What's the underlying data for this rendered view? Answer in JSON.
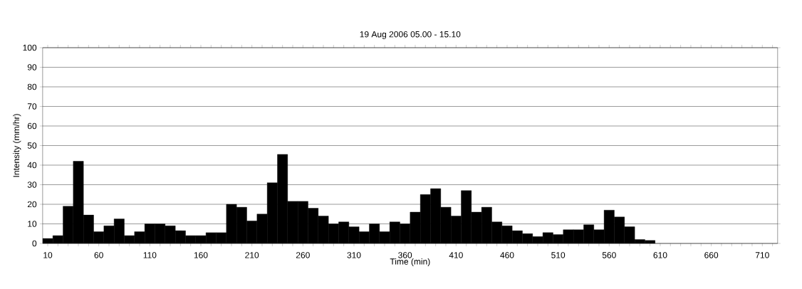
{
  "chart_data": {
    "type": "bar",
    "title": "19  Aug  2006   05.00 - 15.10",
    "xlabel": "Time (min)",
    "ylabel": "Intensity (mm/hr)",
    "categories": [
      "10",
      null,
      null,
      null,
      null,
      "60",
      null,
      null,
      null,
      null,
      "110",
      null,
      null,
      null,
      null,
      "160",
      null,
      null,
      null,
      null,
      "210",
      null,
      null,
      null,
      null,
      "260",
      null,
      null,
      null,
      null,
      "310",
      null,
      null,
      null,
      null,
      "360",
      null,
      null,
      null,
      null,
      "410",
      null,
      null,
      null,
      null,
      "460",
      null,
      null,
      null,
      null,
      "510",
      null,
      null,
      null,
      null,
      "560",
      null,
      null,
      null,
      null,
      "610",
      null,
      null,
      null,
      null,
      "660",
      null,
      null,
      null,
      null,
      "710",
      null
    ],
    "values": [
      2.5,
      4,
      19,
      42,
      14.5,
      6,
      9,
      12.5,
      4,
      6,
      10,
      10,
      9,
      6.5,
      4,
      4,
      5.5,
      5.5,
      20,
      18.5,
      11.5,
      15,
      31,
      45.5,
      21.5,
      21.5,
      18,
      14,
      10,
      11,
      8.5,
      6,
      10,
      6,
      11,
      10,
      16,
      25,
      28,
      18.5,
      14,
      27,
      16,
      18.5,
      11,
      9,
      6.5,
      5,
      3.5,
      5.5,
      4.5,
      7,
      7,
      9.5,
      7,
      17,
      13.5,
      8.5,
      2,
      1.5,
      null,
      null,
      null,
      null,
      null,
      null,
      null,
      null,
      null,
      null,
      null,
      null
    ],
    "color": "#000000",
    "ylim": [
      0,
      100
    ],
    "yticks": [
      0,
      10,
      20,
      30,
      40,
      50,
      60,
      70,
      80,
      90,
      100
    ],
    "grid": "y"
  }
}
